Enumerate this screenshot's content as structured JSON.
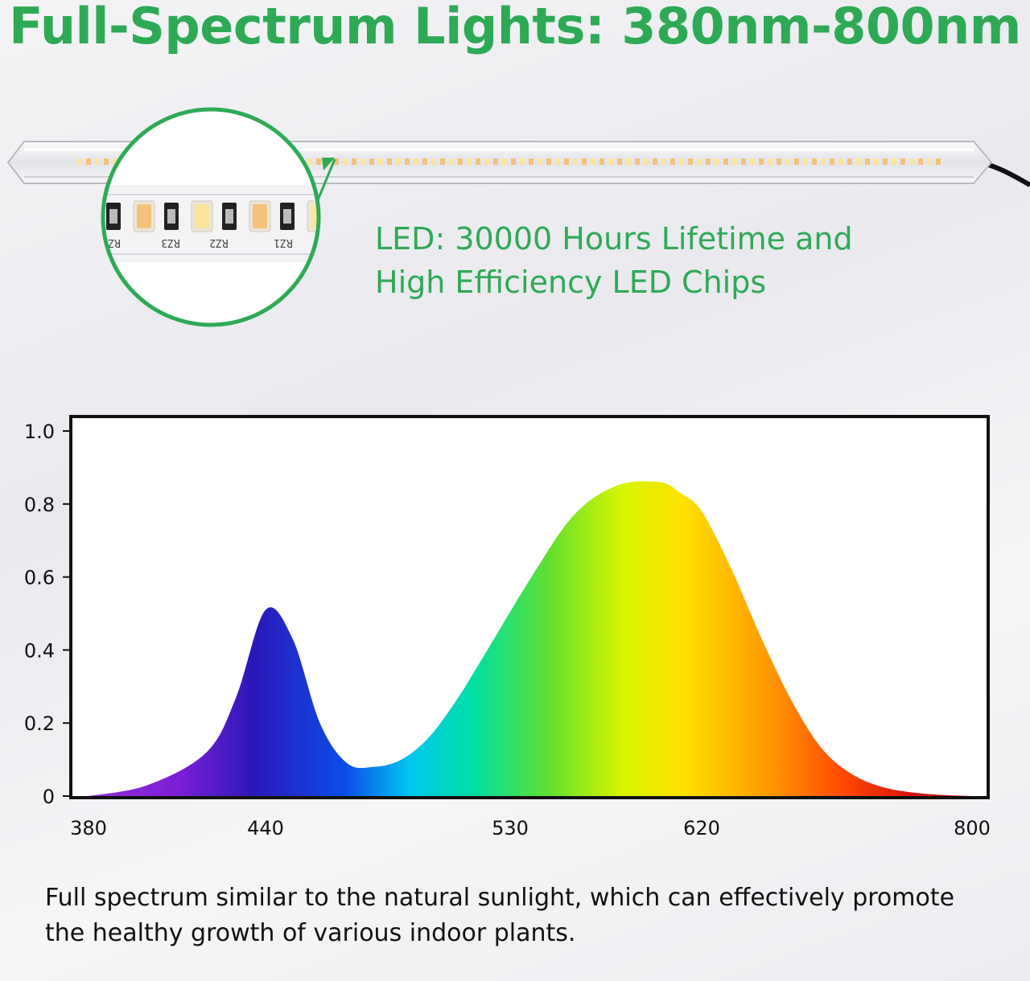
{
  "headline": "Full-Spectrum Lights: 380nm-800nm",
  "led_caption": {
    "line1": "LED: 30000 Hours Lifetime and",
    "line2": "High Efficiency LED Chips"
  },
  "zoom_chip_codes": [
    "RZ",
    "RZ3",
    "RZ2",
    "RZ1"
  ],
  "footer": {
    "line1": "Full spectrum similar to the natural sunlight, which can effectively promote",
    "line2": "the healthy growth of various indoor plants."
  },
  "colors": {
    "accent_green": "#2eaa55",
    "chip_warm": "#f4c27a",
    "chip_cool": "#fbe59a"
  },
  "icons": [
    "led-tube-icon",
    "zoom-lens-icon",
    "power-cable-icon"
  ],
  "chart_data": {
    "type": "area",
    "title": "",
    "xlabel": "",
    "ylabel": "",
    "xlim": [
      380,
      800
    ],
    "ylim": [
      0,
      1.0
    ],
    "x_ticks": [
      "380",
      "440",
      "530",
      "620",
      "800"
    ],
    "y_ticks": [
      "1.0",
      "0.8",
      "0.6",
      "0.4",
      "0.2",
      "0"
    ],
    "grid": false,
    "x": [
      380,
      400,
      420,
      430,
      440,
      450,
      460,
      470,
      480,
      490,
      500,
      510,
      520,
      540,
      560,
      580,
      600,
      610,
      620,
      640,
      660,
      680,
      700,
      720,
      740,
      760,
      780,
      800
    ],
    "y": [
      0.0,
      0.03,
      0.12,
      0.27,
      0.51,
      0.43,
      0.2,
      0.09,
      0.08,
      0.1,
      0.16,
      0.26,
      0.38,
      0.6,
      0.77,
      0.85,
      0.86,
      0.83,
      0.78,
      0.62,
      0.43,
      0.26,
      0.13,
      0.06,
      0.025,
      0.01,
      0.003,
      0.0
    ]
  }
}
